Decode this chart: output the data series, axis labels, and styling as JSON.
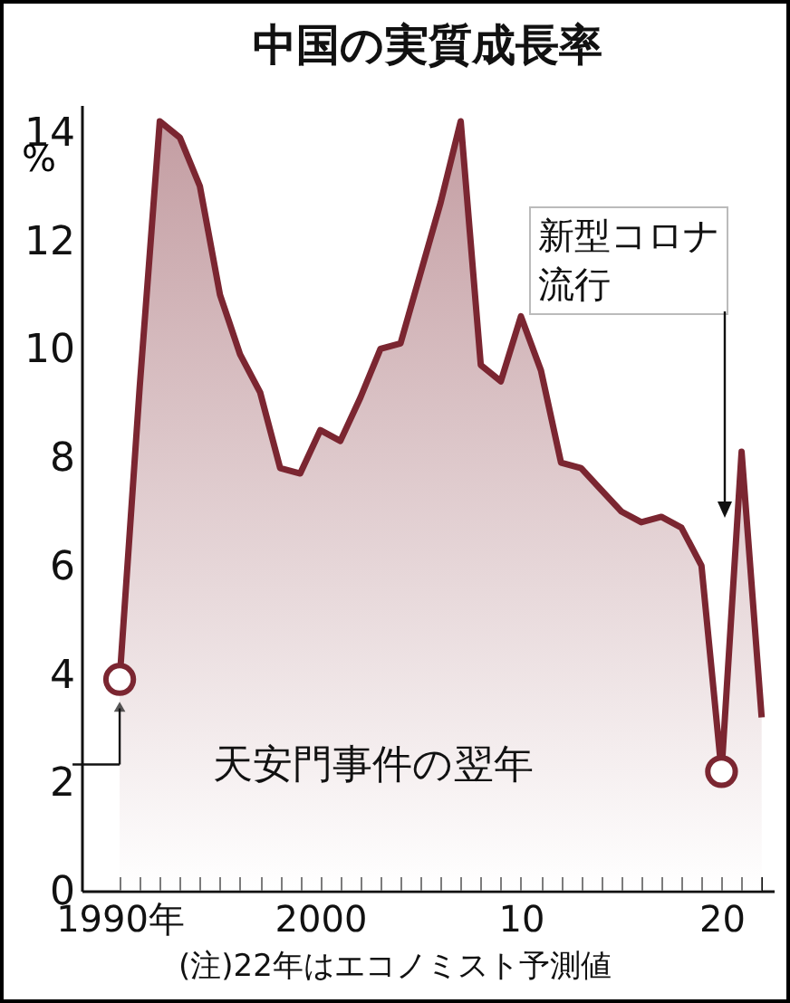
{
  "chart_data": {
    "type": "area",
    "title": "中国の実質成長率",
    "ylabel": "%",
    "x": [
      1990,
      1991,
      1992,
      1993,
      1994,
      1995,
      1996,
      1997,
      1998,
      1999,
      2000,
      2001,
      2002,
      2003,
      2004,
      2005,
      2006,
      2007,
      2008,
      2009,
      2010,
      2011,
      2012,
      2013,
      2014,
      2015,
      2016,
      2017,
      2018,
      2019,
      2020,
      2021,
      2022
    ],
    "series": [
      {
        "color": "#7b2631",
        "values": [
          3.9,
          9.3,
          14.2,
          13.9,
          13.0,
          11.0,
          9.9,
          9.2,
          7.8,
          7.7,
          8.5,
          8.3,
          9.1,
          10.0,
          10.1,
          11.4,
          12.7,
          14.2,
          9.7,
          9.4,
          10.6,
          9.6,
          7.9,
          7.8,
          7.4,
          7.0,
          6.8,
          6.9,
          6.7,
          6.0,
          2.2,
          8.1,
          3.2
        ]
      },
      {
        "type": "scatter",
        "marker": "circle",
        "color": "#7b2631",
        "x": [
          1990,
          2020
        ],
        "values": [
          3.9,
          2.2
        ]
      }
    ],
    "xlim": [
      1988.1,
      2022.6
    ],
    "xticks": [
      {
        "value": 1990,
        "label": "1990年"
      },
      {
        "value": 1991,
        "label": null
      },
      {
        "value": 1992,
        "label": null
      },
      {
        "value": 1993,
        "label": null
      },
      {
        "value": 1994,
        "label": null
      },
      {
        "value": 1995,
        "label": null
      },
      {
        "value": 1996,
        "label": null
      },
      {
        "value": 1997,
        "label": null
      },
      {
        "value": 1998,
        "label": null
      },
      {
        "value": 1999,
        "label": null
      },
      {
        "value": 2000,
        "label": "2000"
      },
      {
        "value": 2001,
        "label": null
      },
      {
        "value": 2002,
        "label": null
      },
      {
        "value": 2003,
        "label": null
      },
      {
        "value": 2004,
        "label": null
      },
      {
        "value": 2005,
        "label": null
      },
      {
        "value": 2006,
        "label": null
      },
      {
        "value": 2007,
        "label": null
      },
      {
        "value": 2008,
        "label": null
      },
      {
        "value": 2009,
        "label": null
      },
      {
        "value": 2010,
        "label": "10"
      },
      {
        "value": 2011,
        "label": null
      },
      {
        "value": 2012,
        "label": null
      },
      {
        "value": 2013,
        "label": null
      },
      {
        "value": 2014,
        "label": null
      },
      {
        "value": 2015,
        "label": null
      },
      {
        "value": 2016,
        "label": null
      },
      {
        "value": 2017,
        "label": null
      },
      {
        "value": 2018,
        "label": null
      },
      {
        "value": 2019,
        "label": null
      },
      {
        "value": 2020,
        "label": "20"
      },
      {
        "value": 2021,
        "label": null
      },
      {
        "value": 2022,
        "label": null
      }
    ],
    "ylim": [
      0,
      14.5
    ],
    "yticks": [
      0,
      2,
      4,
      6,
      8,
      10,
      12,
      14
    ],
    "grid": false,
    "annotations": [
      {
        "text": "天安門事件の翌年",
        "x": 1990,
        "y": 3.9
      },
      "新型コロナ流行",
      "(注)22年はエコノミスト予測値"
    ]
  }
}
